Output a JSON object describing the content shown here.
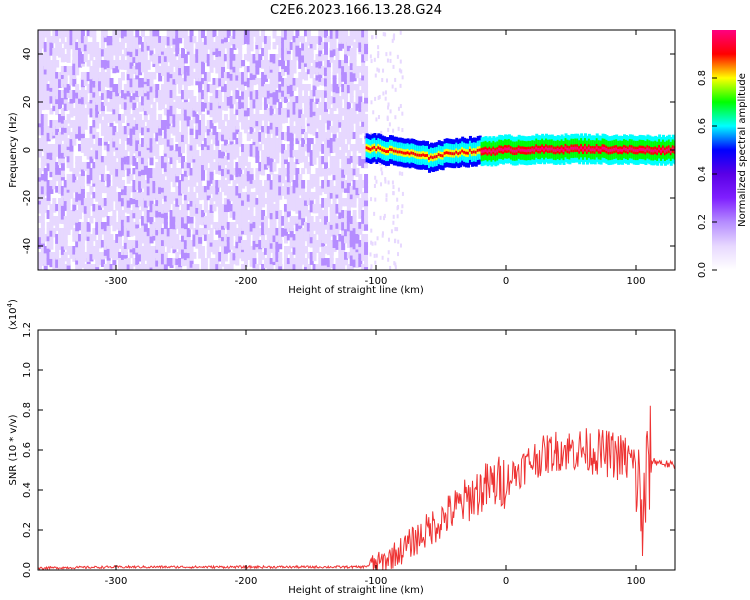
{
  "title": "C2E6.2023.166.13.28.G24",
  "colors": {
    "snr_line": "#ee3333",
    "axis": "#000000",
    "background": "#ffffff"
  },
  "colormap": [
    "#ffffff",
    "#e7d8ff",
    "#b58cff",
    "#7f1fff",
    "#5a00e6",
    "#0000ff",
    "#00ffff",
    "#00ff00",
    "#ffff00",
    "#ff0000",
    "#ff0080"
  ],
  "chart_data": [
    {
      "type": "heatmap",
      "title": "C2E6.2023.166.13.28.G24",
      "xlabel": "Height of straight line (km)",
      "ylabel": "Frequency (Hz)",
      "xlim": [
        -360,
        130
      ],
      "ylim": [
        -50,
        50
      ],
      "x_ticks": [
        -300,
        -200,
        -100,
        0,
        100
      ],
      "y_ticks": [
        -40,
        -20,
        0,
        20,
        40
      ],
      "grid": false,
      "colorbar": {
        "label": "Normalized spectral amplitude",
        "range": [
          0,
          1
        ],
        "ticks": [
          "0.0",
          "0.2",
          "0.4",
          "0.6",
          "0.8"
        ]
      },
      "regions": [
        {
          "x_range": [
            -360,
            -108
          ],
          "freq_range": [
            -50,
            50
          ],
          "amplitude_range": [
            0.02,
            0.18
          ],
          "description": "noise"
        },
        {
          "x_range": [
            -108,
            130
          ],
          "center_freq": [
            [
              -108,
              1
            ],
            [
              -80,
              -1
            ],
            [
              -60,
              -3
            ],
            [
              -40,
              -1
            ],
            [
              0,
              0
            ],
            [
              60,
              0.5
            ],
            [
              100,
              0
            ],
            [
              130,
              0
            ]
          ],
          "amplitude_peak": 0.9
        }
      ]
    },
    {
      "type": "line",
      "xlabel": "Height of straight line (km)",
      "ylabel": "SNR (10 * v/v)",
      "y_scale_label": "(x10",
      "y_scale_exp": "4",
      "y_scale_close": ")",
      "xlim": [
        -360,
        130
      ],
      "ylim": [
        0,
        1.2
      ],
      "x_ticks": [
        -300,
        -200,
        -100,
        0,
        100
      ],
      "y_ticks": [
        "0.0",
        "0.2",
        "0.4",
        "0.6",
        "0.8",
        "1.0",
        "1.2"
      ],
      "grid": false,
      "series": [
        {
          "x": [
            -360,
            -300,
            -200,
            -110,
            -95,
            -80,
            -60,
            -40,
            -20,
            0,
            20,
            40,
            60,
            80,
            95,
            100,
            105,
            110,
            130
          ],
          "values": [
            0.01,
            0.015,
            0.015,
            0.015,
            0.04,
            0.1,
            0.2,
            0.3,
            0.4,
            0.45,
            0.55,
            0.6,
            0.6,
            0.58,
            0.55,
            0.5,
            0.25,
            0.55,
            0.52
          ]
        }
      ]
    }
  ]
}
